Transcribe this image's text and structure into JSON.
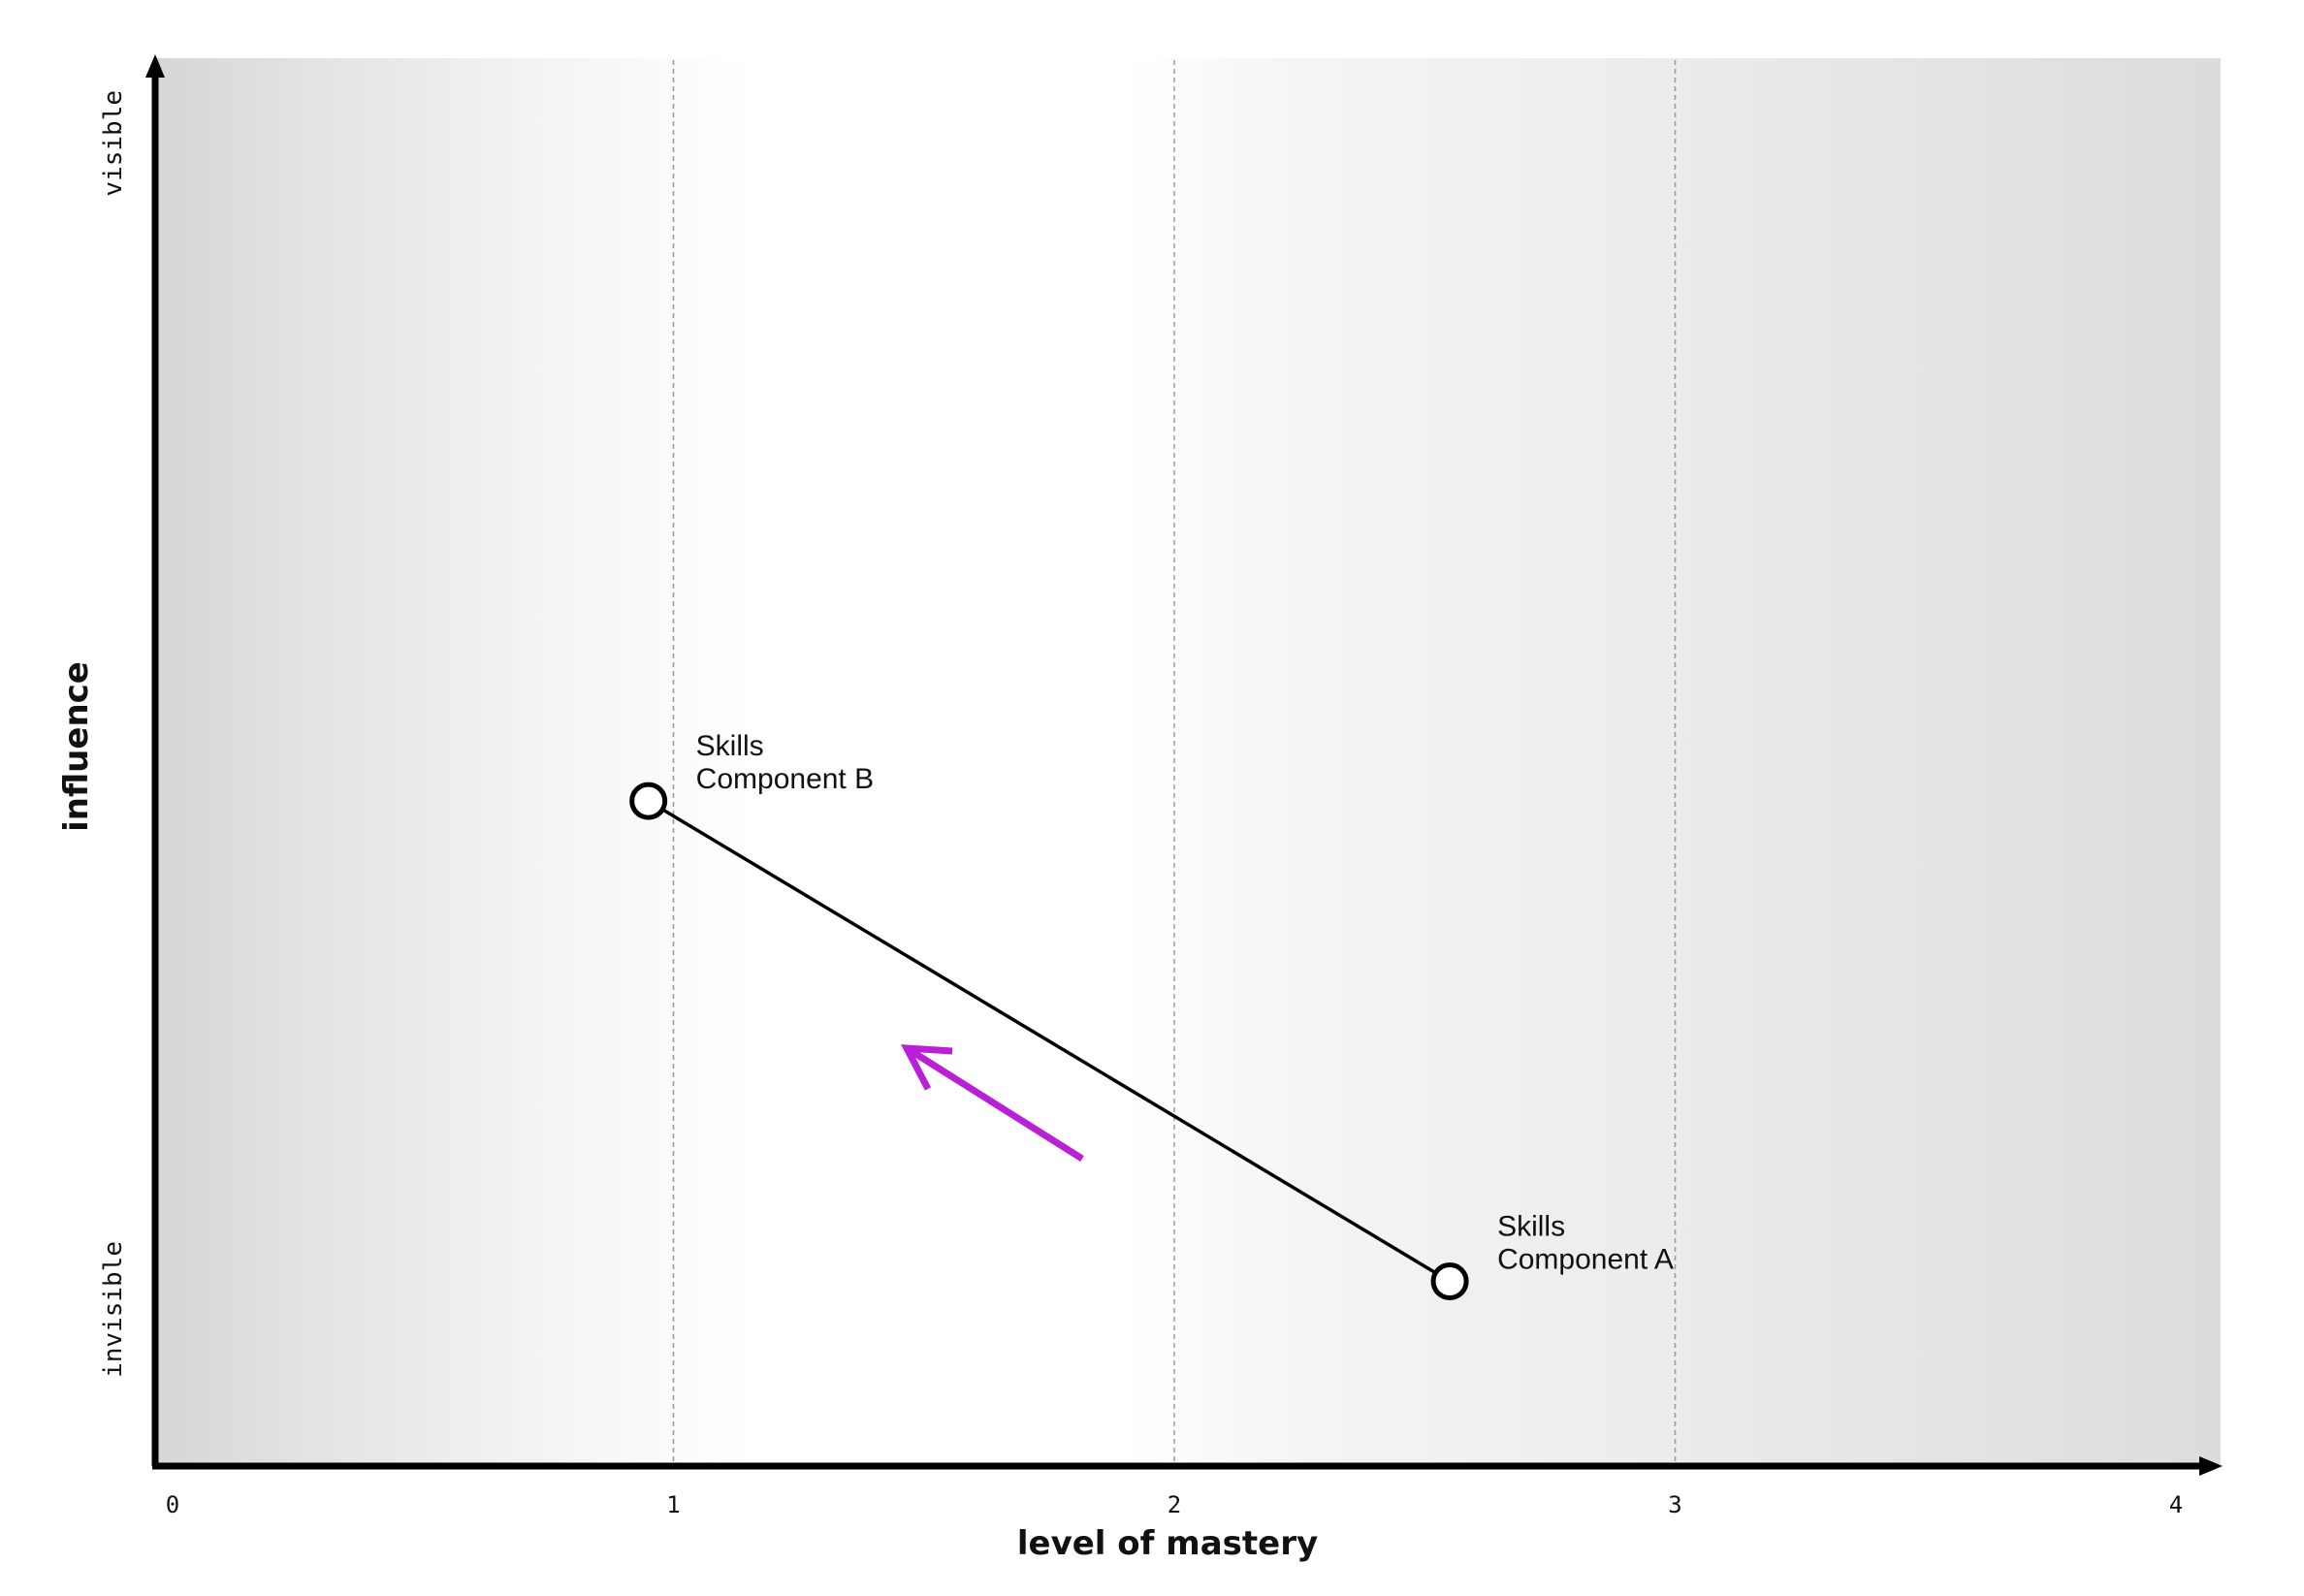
{
  "chart_data": {
    "type": "scatter",
    "xlabel": "level of mastery",
    "ylabel": "influence",
    "xlim": [
      0,
      4
    ],
    "x_ticks": [
      "0",
      "1",
      "2",
      "3",
      "4"
    ],
    "y_axis_labels": {
      "low": "invisible",
      "high": "visible"
    },
    "grid": "vertical dashed lines at 1, 2, 3",
    "points": [
      {
        "label_line1": "Skills",
        "label_line2": "Component A",
        "x": 2.55,
        "y": 0.124
      },
      {
        "label_line1": "Skills",
        "label_line2": "Component B",
        "x": 0.95,
        "y": 0.468
      }
    ],
    "connector": "line from Component A to Component B",
    "trend_arrow": {
      "direction": "toward Component B",
      "color": "#b91fd6"
    }
  }
}
